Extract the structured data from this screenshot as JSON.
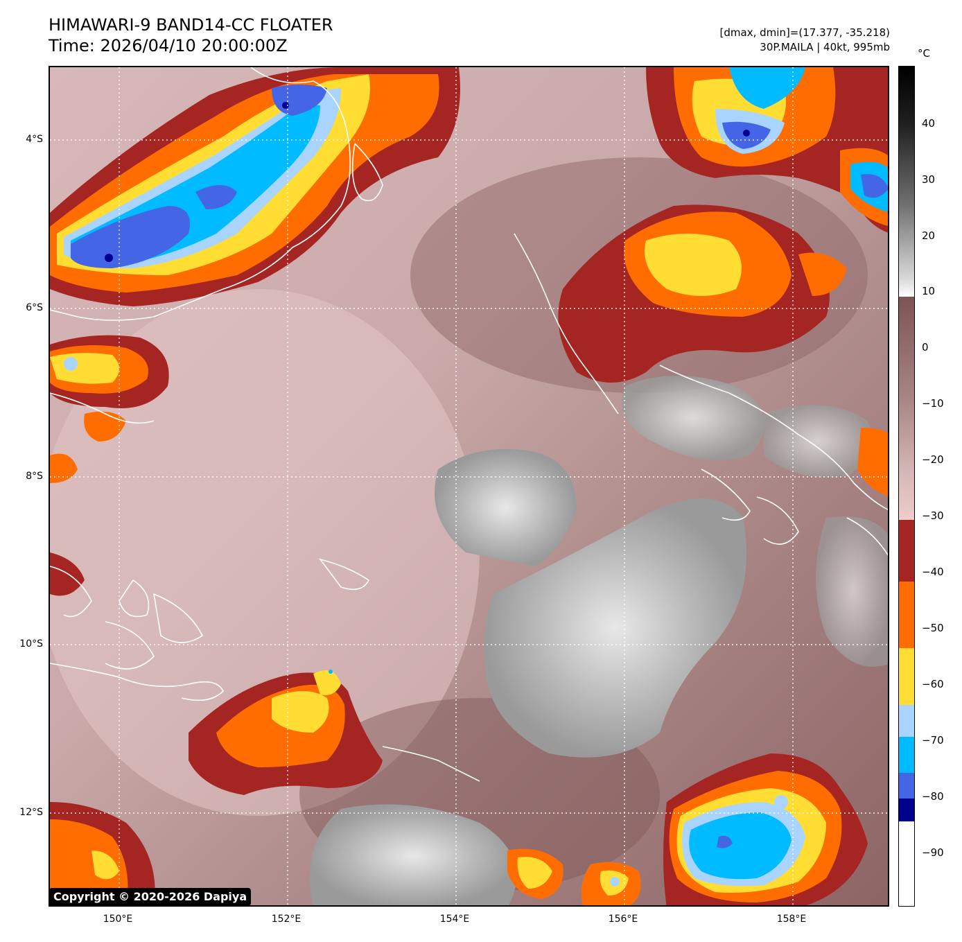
{
  "header": {
    "title": "HIMAWARI-9 BAND14-CC FLOATER",
    "time": "Time: 2026/04/10 20:00:00Z",
    "dminmax": "[dmax, dmin]=(17.377, -35.218)",
    "storm": "30P.MAILA | 40kt, 995mb"
  },
  "map": {
    "lat_labels": [
      "4°S",
      "6°S",
      "8°S",
      "10°S",
      "12°S"
    ],
    "lon_labels": [
      "150°E",
      "152°E",
      "154°E",
      "156°E",
      "158°E"
    ],
    "copyright": "Copyright © 2020-2026 Dapiya"
  },
  "colorbar": {
    "unit": "°C",
    "ticks": [
      "40",
      "30",
      "20",
      "10",
      "0",
      "−10",
      "−20",
      "−30",
      "−40",
      "−50",
      "−60",
      "−70",
      "−80",
      "−90"
    ],
    "colors": {
      "dark_red": "#a52522",
      "orange": "#ff6d00",
      "yellow": "#ffdd33",
      "light_blue": "#a8d4ff",
      "cyan": "#00bbff",
      "royal_blue": "#4466e6",
      "navy": "#00008f",
      "mauve": "#7d5454",
      "pink": "#f0cccc"
    }
  }
}
